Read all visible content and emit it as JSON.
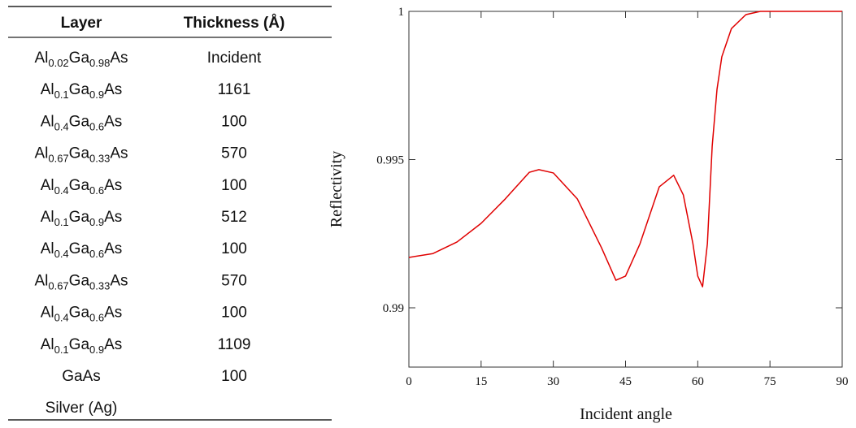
{
  "table": {
    "header": [
      "Layer",
      "Thickness (Å)"
    ],
    "rows": [
      {
        "layer": [
          "Al",
          "0.02",
          "Ga",
          "0.98",
          "As"
        ],
        "thickness": "Incident"
      },
      {
        "layer": [
          "Al",
          "0.1",
          "Ga",
          "0.9",
          "As"
        ],
        "thickness": 1161
      },
      {
        "layer": [
          "Al",
          "0.4",
          "Ga",
          "0.6",
          "As"
        ],
        "thickness": 100
      },
      {
        "layer": [
          "Al",
          "0.67",
          "Ga",
          "0.33",
          "As"
        ],
        "thickness": 570
      },
      {
        "layer": [
          "Al",
          "0.4",
          "Ga",
          "0.6",
          "As"
        ],
        "thickness": 100
      },
      {
        "layer": [
          "Al",
          "0.1",
          "Ga",
          "0.9",
          "As"
        ],
        "thickness": 512
      },
      {
        "layer": [
          "Al",
          "0.4",
          "Ga",
          "0.6",
          "As"
        ],
        "thickness": 100
      },
      {
        "layer": [
          "Al",
          "0.67",
          "Ga",
          "0.33",
          "As"
        ],
        "thickness": 570
      },
      {
        "layer": [
          "Al",
          "0.4",
          "Ga",
          "0.6",
          "As"
        ],
        "thickness": 100
      },
      {
        "layer": [
          "Al",
          "0.1",
          "Ga",
          "0.9",
          "As"
        ],
        "thickness": 1109
      },
      {
        "layer": [
          "GaAs"
        ],
        "thickness": 100
      },
      {
        "layer": [
          "Silver (Ag)"
        ]
      }
    ]
  },
  "chart_data": {
    "type": "line",
    "xlabel": "Incident angle",
    "ylabel": "Reflectivity",
    "xlim": [
      0,
      90
    ],
    "xticks": [
      0,
      15,
      30,
      45,
      60,
      75,
      90
    ],
    "ylim": [
      0.988,
      1
    ],
    "yticks": [
      0.99,
      0.995,
      1
    ],
    "x": [
      0,
      5,
      10,
      15,
      20,
      25,
      27,
      30,
      35,
      40,
      43,
      45,
      48,
      52,
      55,
      57,
      59,
      60,
      61,
      62,
      63,
      64,
      65,
      67,
      70,
      73,
      90
    ],
    "series": [
      {
        "color": "#e00000",
        "values": [
          0.9917,
          0.99183,
          0.99222,
          0.99285,
          0.99367,
          0.99457,
          0.99466,
          0.99455,
          0.99367,
          0.99203,
          0.99093,
          0.99107,
          0.99216,
          0.99408,
          0.99447,
          0.99381,
          0.99216,
          0.99107,
          0.99071,
          0.99216,
          0.99545,
          0.99737,
          0.99847,
          0.99942,
          0.99989,
          1,
          1
        ]
      }
    ]
  }
}
